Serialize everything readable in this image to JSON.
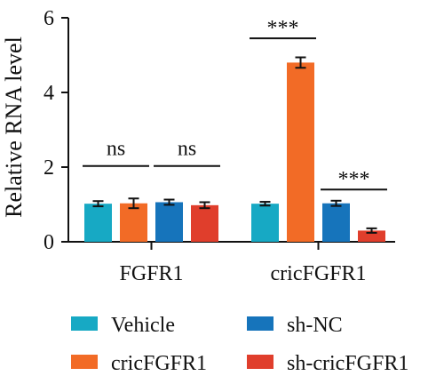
{
  "chart_data": {
    "type": "bar",
    "ylabel": "Relative RNA level",
    "ylim": [
      0,
      6
    ],
    "yticks": [
      0,
      2,
      4,
      6
    ],
    "groups": [
      "FGFR1",
      "cricFGFR1"
    ],
    "series": [
      {
        "name": "Vehicle",
        "color": "#17a9c4",
        "values": [
          1.02,
          1.02
        ],
        "errors": [
          0.07,
          0.05
        ]
      },
      {
        "name": "cricFGFR1",
        "color": "#f26b26",
        "values": [
          1.03,
          4.8
        ],
        "errors": [
          0.13,
          0.14
        ]
      },
      {
        "name": "sh-NC",
        "color": "#1674bb",
        "values": [
          1.06,
          1.03
        ],
        "errors": [
          0.07,
          0.07
        ]
      },
      {
        "name": "sh-cricFGFR1",
        "color": "#e03e2c",
        "values": [
          0.98,
          0.3
        ],
        "errors": [
          0.08,
          0.06
        ]
      }
    ],
    "comparisons": [
      {
        "group": 0,
        "from": 0,
        "to": 1,
        "label": "ns",
        "y": 2.03
      },
      {
        "group": 0,
        "from": 2,
        "to": 3,
        "label": "ns",
        "y": 2.03
      },
      {
        "group": 1,
        "from": 0,
        "to": 1,
        "label": "***",
        "y": 5.45
      },
      {
        "group": 1,
        "from": 2,
        "to": 3,
        "label": "***",
        "y": 1.4
      }
    ],
    "legend": {
      "placement": "bottom",
      "columns": 2
    }
  }
}
